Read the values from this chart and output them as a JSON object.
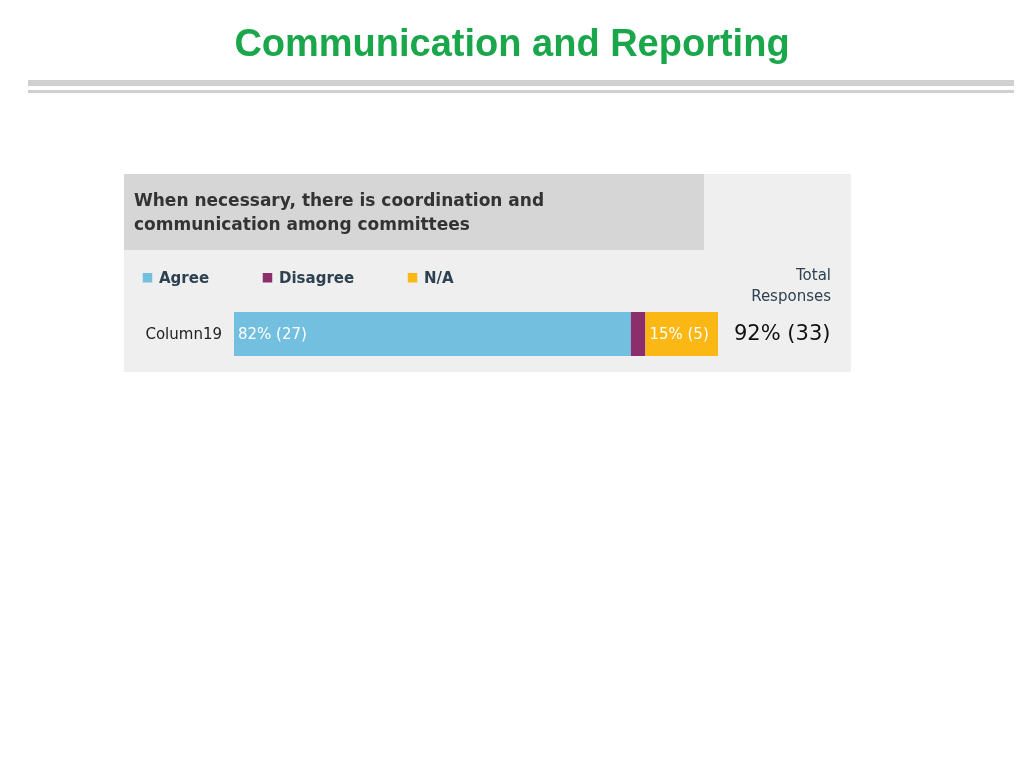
{
  "chart_data": {
    "type": "bar",
    "orientation": "horizontal",
    "stacked": true,
    "title": "Communication and Reporting",
    "subtitle": "When necessary, there is coordination and communication among committees",
    "categories": [
      "Column19"
    ],
    "series": [
      {
        "name": "Agree",
        "color": "#73bfe0",
        "values": [
          82
        ],
        "value_labels": [
          "82% (27)"
        ]
      },
      {
        "name": "Disagree",
        "color": "#8c2e6c",
        "values": [
          3
        ],
        "value_labels": [
          null
        ]
      },
      {
        "name": "N/A",
        "color": "#fbb714",
        "values": [
          15
        ],
        "value_labels": [
          "15% (5)"
        ]
      }
    ],
    "xlim": [
      0,
      100
    ],
    "totals": [
      "92% (33)"
    ],
    "annotations": [
      "Total Responses"
    ],
    "legend": "top left"
  }
}
